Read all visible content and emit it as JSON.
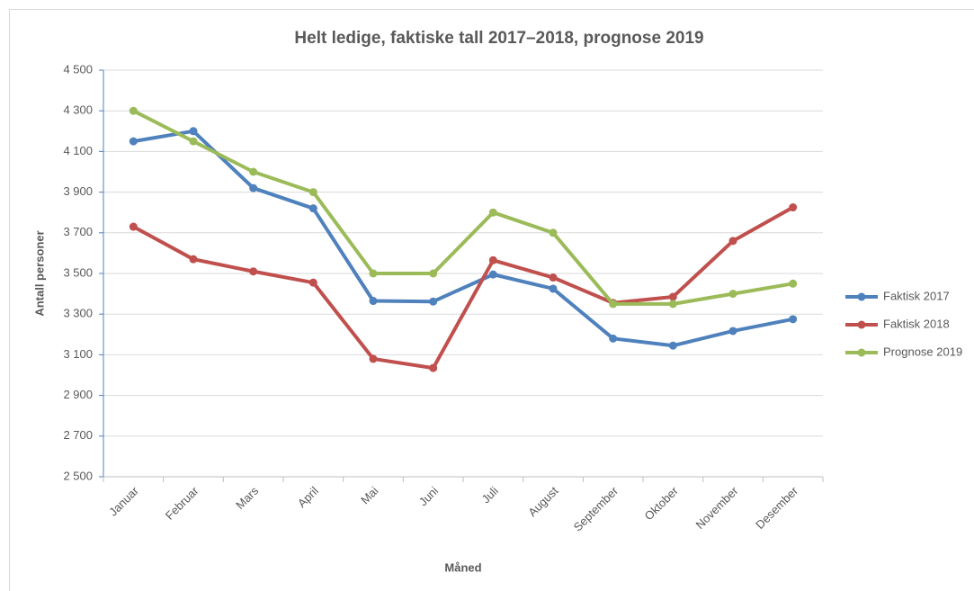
{
  "chart_data": {
    "type": "line",
    "title": "Helt ledige, faktiske tall 2017–2018, prognose 2019",
    "x_label": "Måned",
    "y_label": "Antall personer",
    "categories": [
      "Januar",
      "Februar",
      "Mars",
      "April",
      "Mai",
      "Juni",
      "Juli",
      "August",
      "September",
      "Oktober",
      "November",
      "Desember"
    ],
    "series": [
      {
        "name": "Faktisk 2017",
        "color": "#4f81bd",
        "values": [
          4150,
          4200,
          3920,
          3820,
          3365,
          3362,
          3495,
          3425,
          3180,
          3145,
          3217,
          3275
        ]
      },
      {
        "name": "Faktisk 2018",
        "color": "#c0504d",
        "values": [
          3730,
          3570,
          3510,
          3455,
          3080,
          3035,
          3565,
          3480,
          3355,
          3385,
          3660,
          3825
        ]
      },
      {
        "name": "Prognose 2019",
        "color": "#9bbb59",
        "values": [
          4300,
          4150,
          4000,
          3900,
          3500,
          3500,
          3800,
          3700,
          3350,
          3350,
          3400,
          3450
        ]
      }
    ],
    "ylim": [
      2500,
      4500
    ],
    "yticks": [
      {
        "value": 2500,
        "label": "2 500"
      },
      {
        "value": 2700,
        "label": "2 700"
      },
      {
        "value": 2900,
        "label": "2 900"
      },
      {
        "value": 3100,
        "label": "3 100"
      },
      {
        "value": 3300,
        "label": "3 300"
      },
      {
        "value": 3500,
        "label": "3 500"
      },
      {
        "value": 3700,
        "label": "3 700"
      },
      {
        "value": 3900,
        "label": "3 900"
      },
      {
        "value": 4100,
        "label": "4 100"
      },
      {
        "value": 4300,
        "label": "4 300"
      },
      {
        "value": 4500,
        "label": "4 500"
      }
    ],
    "grid": true,
    "legend": "right"
  }
}
